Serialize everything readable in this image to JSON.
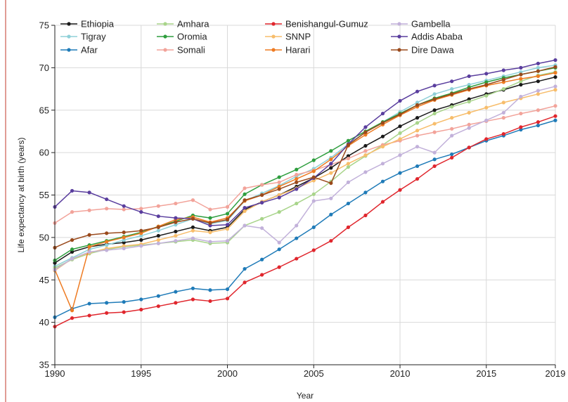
{
  "chart_data": {
    "type": "line",
    "title": "",
    "xlabel": "Year",
    "ylabel": "Life expectancy at birth (years)",
    "xlim": [
      1990,
      2019
    ],
    "ylim": [
      35,
      75
    ],
    "xticks": [
      "1990",
      "1995",
      "2000",
      "2005",
      "2010",
      "2015",
      "2019"
    ],
    "yticks": [
      "35",
      "40",
      "45",
      "50",
      "55",
      "60",
      "65",
      "70",
      "75"
    ],
    "grid": true,
    "legend_position": "top",
    "x": [
      1990,
      1991,
      1992,
      1993,
      1994,
      1995,
      1996,
      1997,
      1998,
      1999,
      2000,
      2001,
      2002,
      2003,
      2004,
      2005,
      2006,
      2007,
      2008,
      2009,
      2010,
      2011,
      2012,
      2013,
      2014,
      2015,
      2016,
      2017,
      2018,
      2019
    ],
    "series": [
      {
        "name": "Ethiopia",
        "color": "#1a1a1a",
        "values": [
          47.0,
          48.3,
          48.9,
          49.2,
          49.4,
          49.7,
          50.2,
          50.7,
          51.2,
          50.8,
          51.2,
          53.3,
          54.2,
          55.0,
          56.0,
          57.0,
          58.2,
          59.6,
          60.8,
          61.9,
          63.1,
          64.1,
          65.0,
          65.6,
          66.3,
          66.9,
          67.4,
          68.0,
          68.4,
          68.9
        ]
      },
      {
        "name": "Tigray",
        "color": "#8fd0d8",
        "values": [
          46.6,
          47.6,
          48.6,
          49.1,
          49.7,
          50.2,
          50.8,
          51.5,
          52.2,
          51.6,
          52.0,
          54.3,
          55.2,
          56.1,
          57.2,
          58.1,
          59.4,
          61.0,
          62.4,
          63.6,
          64.8,
          65.9,
          66.9,
          67.5,
          68.0,
          68.5,
          69.0,
          69.5,
          70.0,
          70.3
        ]
      },
      {
        "name": "Afar",
        "color": "#1f7bb8",
        "values": [
          40.6,
          41.6,
          42.2,
          42.3,
          42.4,
          42.7,
          43.1,
          43.6,
          44.0,
          43.8,
          43.9,
          46.3,
          47.4,
          48.6,
          49.9,
          51.2,
          52.7,
          54.0,
          55.3,
          56.6,
          57.6,
          58.4,
          59.2,
          59.8,
          60.6,
          61.4,
          62.0,
          62.7,
          63.2,
          63.8
        ]
      },
      {
        "name": "Amhara",
        "color": "#a8d48a",
        "values": [
          46.4,
          47.4,
          48.1,
          48.6,
          48.9,
          49.1,
          49.3,
          49.5,
          49.7,
          49.3,
          49.4,
          51.4,
          52.2,
          53.0,
          54.0,
          55.1,
          56.6,
          58.3,
          59.6,
          60.9,
          62.3,
          63.5,
          64.6,
          65.4,
          66.0,
          66.7,
          67.5,
          68.4,
          69.1,
          69.5
        ]
      },
      {
        "name": "Oromia",
        "color": "#2e9e3e",
        "values": [
          47.3,
          48.6,
          49.1,
          49.6,
          50.1,
          50.6,
          51.3,
          51.9,
          52.6,
          52.3,
          52.8,
          55.1,
          56.2,
          57.1,
          58.0,
          59.1,
          60.2,
          61.4,
          62.5,
          63.6,
          64.6,
          65.6,
          66.4,
          67.0,
          67.7,
          68.3,
          68.8,
          69.2,
          69.6,
          70.0
        ]
      },
      {
        "name": "Somali",
        "color": "#f2a39a",
        "values": [
          51.7,
          53.0,
          53.2,
          53.4,
          53.3,
          53.4,
          53.7,
          54.0,
          54.4,
          53.3,
          53.6,
          55.8,
          56.2,
          56.5,
          57.4,
          57.9,
          58.6,
          59.3,
          60.2,
          60.9,
          61.4,
          62.0,
          62.4,
          62.8,
          63.3,
          63.7,
          64.1,
          64.6,
          65.0,
          65.5
        ]
      },
      {
        "name": "Benishangul-Gumuz",
        "color": "#e0262d",
        "values": [
          39.5,
          40.5,
          40.8,
          41.1,
          41.2,
          41.5,
          41.9,
          42.3,
          42.7,
          42.5,
          42.8,
          44.7,
          45.6,
          46.5,
          47.5,
          48.5,
          49.6,
          51.2,
          52.6,
          54.2,
          55.6,
          56.9,
          58.4,
          59.4,
          60.6,
          61.6,
          62.2,
          63.0,
          63.6,
          64.3
        ]
      },
      {
        "name": "SNNP",
        "color": "#f7bd6b",
        "values": [
          46.1,
          47.5,
          48.2,
          48.7,
          49.0,
          49.2,
          49.7,
          50.2,
          50.8,
          50.6,
          51.0,
          53.1,
          54.2,
          55.0,
          55.8,
          56.7,
          57.6,
          58.7,
          59.7,
          60.7,
          61.6,
          62.6,
          63.4,
          64.1,
          64.7,
          65.3,
          65.9,
          66.4,
          66.9,
          67.4
        ]
      },
      {
        "name": "Harari",
        "color": "#ee7b22",
        "values": [
          46.2,
          41.4,
          48.9,
          49.5,
          50.0,
          50.5,
          51.3,
          52.1,
          52.4,
          51.8,
          52.3,
          54.3,
          55.0,
          56.0,
          56.9,
          57.8,
          59.2,
          60.8,
          62.1,
          63.3,
          64.4,
          65.4,
          66.2,
          66.8,
          67.4,
          67.9,
          68.3,
          68.7,
          69.0,
          69.4
        ]
      },
      {
        "name": "Gambella",
        "color": "#c2b1da",
        "values": [
          46.2,
          47.5,
          48.3,
          48.5,
          48.7,
          49.0,
          49.3,
          49.6,
          49.9,
          49.5,
          49.6,
          51.4,
          51.1,
          49.4,
          51.4,
          54.3,
          54.6,
          56.5,
          57.7,
          58.7,
          59.7,
          60.7,
          60.0,
          62.0,
          62.9,
          63.8,
          64.7,
          66.6,
          67.3,
          67.8
        ]
      },
      {
        "name": "Addis Ababa",
        "color": "#5a3e9e",
        "values": [
          53.6,
          55.5,
          55.3,
          54.5,
          53.7,
          53.0,
          52.5,
          52.3,
          52.2,
          51.4,
          51.5,
          53.5,
          54.1,
          54.7,
          55.7,
          57.0,
          58.7,
          61.0,
          63.0,
          64.6,
          66.1,
          67.2,
          67.9,
          68.4,
          69.0,
          69.3,
          69.7,
          70.0,
          70.5,
          70.9
        ]
      },
      {
        "name": "Dire Dawa",
        "color": "#9a4a1c",
        "values": [
          48.8,
          49.7,
          50.3,
          50.5,
          50.6,
          50.8,
          51.2,
          51.8,
          52.2,
          51.7,
          52.1,
          54.4,
          55.0,
          55.7,
          56.5,
          57.1,
          56.4,
          60.9,
          62.4,
          63.5,
          64.5,
          65.6,
          66.3,
          66.9,
          67.5,
          68.0,
          68.6,
          69.2,
          69.6,
          70.1
        ]
      }
    ]
  }
}
